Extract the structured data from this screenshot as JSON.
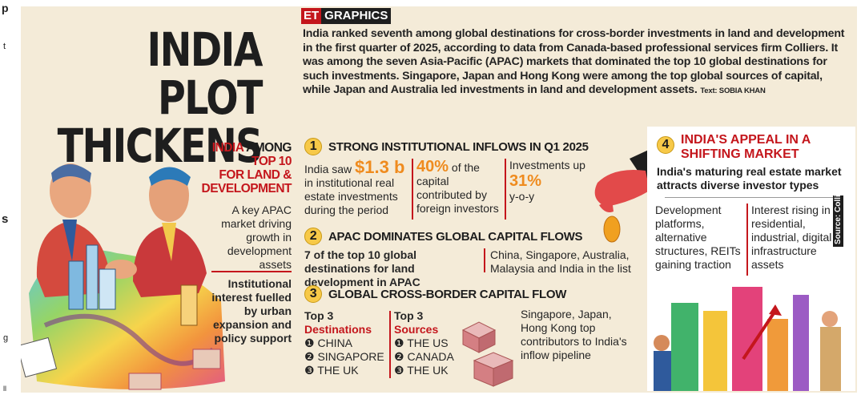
{
  "left_fragments": {
    "top": "p",
    "t": "t",
    "s": "s",
    "g": "g",
    "ll": "ll"
  },
  "logo": {
    "et": "ET",
    "graphics": "GRAPHICS"
  },
  "title": {
    "line1": "INDIA PLOT",
    "line2": "THICKENS"
  },
  "intro": {
    "text": "India ranked seventh among global destinations for cross-border investments in land and development in the first quarter of 2025, according to data from Canada-based professional services firm Colliers. It was among the seven Asia-Pacific (APAC) markets that dominated the top 10 global destinations for such investments. Singapore, Japan and Hong Kong were among the top global sources of capital, while Japan and Australia led investments in land and development assets.",
    "credit": "Text: SOBIA KHAN"
  },
  "left_panel": {
    "heading_india": "INDIA",
    "heading_rest": "AMONG TOP 10 FOR LAND & DEVELOPMENT",
    "h_l1a": "INDIA",
    "h_l1b": " AMONG",
    "h_l2": "TOP 10",
    "h_l3": "FOR LAND &",
    "h_l4": "DEVELOPMENT",
    "apac_text": "A key APAC market driving growth in development assets",
    "institutional_text": "Institutional interest fuelled by urban expansion and policy support"
  },
  "sec1": {
    "num": "1",
    "heading": "STRONG INSTITUTIONAL INFLOWS IN Q1 2025",
    "a_pre": "India saw",
    "a_big": "$1.3 b",
    "a_post": "in institutional real estate investments during the period",
    "b_big": "40%",
    "b_post1": "of",
    "b_post2": "the capital contributed by foreign investors",
    "c_pre": "Investments up",
    "c_big": "31%",
    "c_post": "y-o-y"
  },
  "sec2": {
    "num": "2",
    "heading": "APAC DOMINATES GLOBAL CAPITAL FLOWS",
    "left": "7 of the top 10 global destinations for land development in APAC",
    "right": "China, Singapore, Australia, Malaysia and India in the list"
  },
  "sec3": {
    "num": "3",
    "heading": "GLOBAL CROSS-BORDER CAPITAL FLOW",
    "dest_title1": "Top 3",
    "dest_title2": "Destinations",
    "destinations": [
      "CHINA",
      "SINGAPORE",
      "THE UK"
    ],
    "src_title1": "Top 3",
    "src_title2": "Sources",
    "sources": [
      "THE US",
      "CANADA",
      "THE UK"
    ],
    "note": "Singapore, Japan, Hong Kong top contributors to India's inflow pipeline"
  },
  "sec4": {
    "num": "4",
    "heading": "INDIA'S APPEAL IN A SHIFTING MARKET",
    "sub": "India's maturing real estate market attracts diverse investor types",
    "left": "Development platforms, alternative structures, REITs gaining traction",
    "right": "Interest rising in residential, industrial, digital infrastructure assets"
  },
  "source": "Source: Colliers",
  "bullets": [
    "❶",
    "❷",
    "❸"
  ],
  "colors": {
    "accent_red": "#c4161c",
    "stat_orange": "#ef8b1e",
    "panel_bg": "#f4ebd8",
    "badge_yellow": "#f7c948"
  }
}
